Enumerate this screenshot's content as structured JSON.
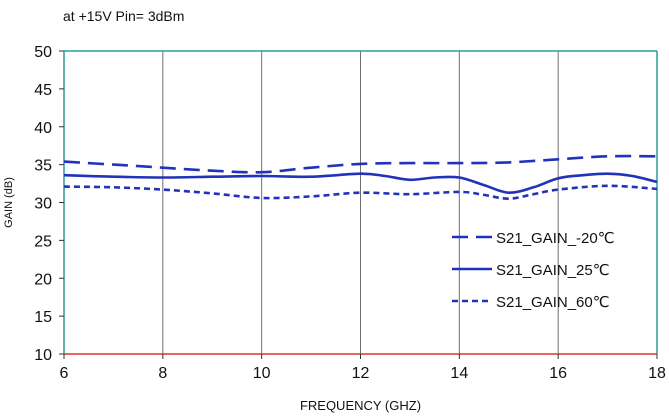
{
  "chart_data": {
    "type": "line",
    "title": "",
    "subtitle": "at +15V Pin= 3dBm",
    "xlabel": "FREQUENCY (GHZ)",
    "ylabel": "GAIN (dB)",
    "xlim": [
      6,
      18
    ],
    "ylim": [
      10,
      50
    ],
    "xticks": [
      6,
      8,
      10,
      12,
      14,
      16,
      18
    ],
    "yticks": [
      10,
      15,
      20,
      25,
      30,
      35,
      40,
      45,
      50
    ],
    "grid": "vertical",
    "legend_position": "lower-right",
    "series": [
      {
        "name": "S21_GAIN_-20℃",
        "style": "long-dash",
        "color": "#2233bb",
        "x": [
          6,
          7,
          8,
          9,
          10,
          11,
          12,
          13,
          14,
          15,
          16,
          17,
          18
        ],
        "y": [
          35.4,
          35.0,
          34.6,
          34.2,
          34.0,
          34.6,
          35.1,
          35.2,
          35.2,
          35.3,
          35.7,
          36.1,
          36.1
        ]
      },
      {
        "name": "S21_GAIN_25℃",
        "style": "solid",
        "color": "#2233bb",
        "x": [
          6,
          7,
          8,
          9,
          10,
          11,
          12,
          12.5,
          13,
          13.5,
          14,
          14.5,
          15,
          15.5,
          16,
          16.5,
          17,
          17.5,
          18
        ],
        "y": [
          33.6,
          33.4,
          33.3,
          33.4,
          33.5,
          33.4,
          33.8,
          33.5,
          33.0,
          33.3,
          33.3,
          32.3,
          31.3,
          32.0,
          33.2,
          33.6,
          33.8,
          33.5,
          32.7
        ]
      },
      {
        "name": "S21_GAIN_60℃",
        "style": "short-dash",
        "color": "#2233bb",
        "x": [
          6,
          7,
          8,
          9,
          10,
          11,
          12,
          13,
          14,
          14.5,
          15,
          15.5,
          16,
          17,
          18
        ],
        "y": [
          32.1,
          32.0,
          31.7,
          31.2,
          30.6,
          30.8,
          31.3,
          31.1,
          31.4,
          31.0,
          30.5,
          31.1,
          31.7,
          32.2,
          31.8
        ]
      }
    ]
  },
  "colors": {
    "plot_border": "#2a9d9d",
    "grid": "#6f6f6f",
    "x_axis_line": "#e0342e",
    "series_line": "#2233bb"
  }
}
